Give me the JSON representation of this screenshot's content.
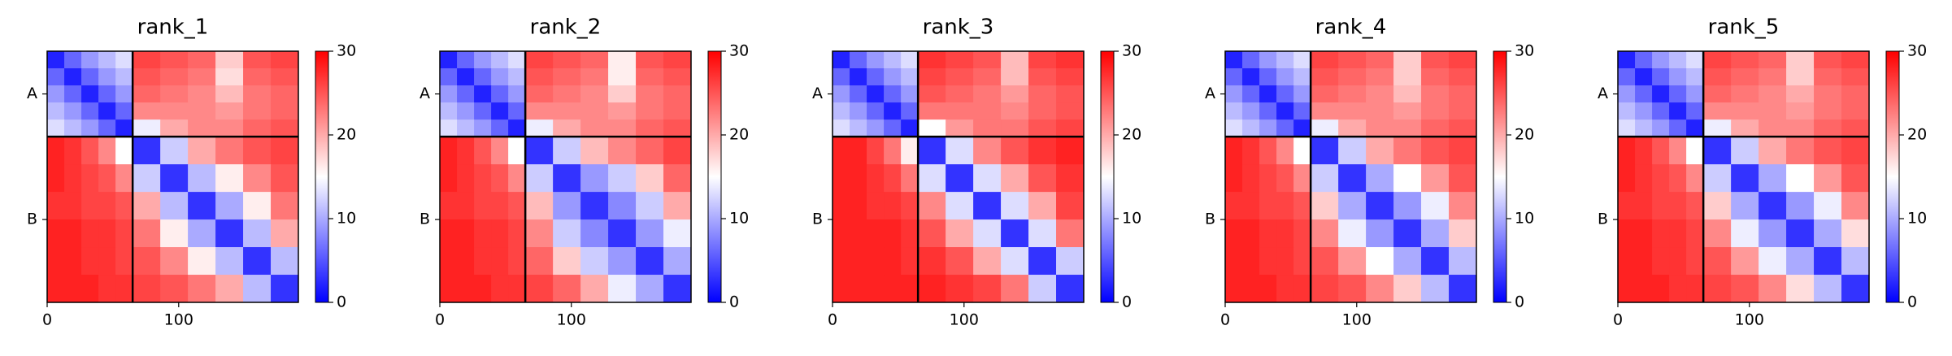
{
  "chart_data": [
    {
      "type": "heatmap",
      "title": "rank_1",
      "colormap": "bwr",
      "bins": [
        0,
        13,
        26,
        39,
        52,
        65,
        86,
        107,
        128,
        149,
        170,
        191
      ],
      "xlim": [
        0,
        191
      ],
      "ylim": [
        191,
        0
      ],
      "xticks": [
        0,
        100
      ],
      "yticks": [
        {
          "value": 32.5,
          "label": "A"
        },
        {
          "value": 128,
          "label": "B"
        }
      ],
      "chain_breaks": [
        65
      ],
      "clim": [
        0,
        30
      ],
      "cticks": [
        0,
        10,
        20,
        30
      ],
      "values": [
        [
          2,
          6,
          9,
          11,
          13,
          26,
          25,
          24,
          18,
          25,
          26
        ],
        [
          6,
          2,
          6,
          9,
          11,
          25,
          24,
          23,
          17,
          24,
          25
        ],
        [
          9,
          6,
          2,
          6,
          9,
          24,
          23,
          22,
          19,
          23,
          24
        ],
        [
          11,
          9,
          6,
          2,
          6,
          22,
          22,
          22,
          21,
          23,
          24
        ],
        [
          13,
          11,
          9,
          6,
          2,
          14,
          20,
          22,
          22,
          24,
          25
        ],
        [
          28,
          27,
          25,
          22,
          15,
          3,
          12,
          20,
          23,
          25,
          26
        ],
        [
          28,
          27,
          26,
          25,
          22,
          12,
          3,
          11,
          16,
          22,
          25
        ],
        [
          27,
          27,
          26,
          26,
          25,
          20,
          11,
          3,
          10,
          16,
          23
        ],
        [
          28,
          28,
          27,
          27,
          26,
          23,
          16,
          10,
          3,
          11,
          20
        ],
        [
          28,
          28,
          27,
          27,
          26,
          25,
          22,
          16,
          11,
          3,
          11
        ],
        [
          28,
          28,
          28,
          27,
          27,
          26,
          25,
          23,
          20,
          11,
          3
        ]
      ]
    },
    {
      "type": "heatmap",
      "title": "rank_2",
      "colormap": "bwr",
      "bins": [
        0,
        13,
        26,
        39,
        52,
        65,
        86,
        107,
        128,
        149,
        170,
        191
      ],
      "xlim": [
        0,
        191
      ],
      "ylim": [
        191,
        0
      ],
      "xticks": [
        0,
        100
      ],
      "yticks": [
        {
          "value": 32.5,
          "label": "A"
        },
        {
          "value": 128,
          "label": "B"
        }
      ],
      "chain_breaks": [
        65
      ],
      "clim": [
        0,
        30
      ],
      "cticks": [
        0,
        10,
        20,
        30
      ],
      "values": [
        [
          2,
          6,
          9,
          11,
          13,
          26,
          25,
          24,
          16,
          25,
          26
        ],
        [
          6,
          2,
          6,
          9,
          11,
          25,
          24,
          23,
          16,
          24,
          25
        ],
        [
          9,
          6,
          2,
          6,
          9,
          24,
          23,
          22,
          18,
          23,
          24
        ],
        [
          11,
          9,
          6,
          2,
          6,
          22,
          22,
          22,
          21,
          23,
          24
        ],
        [
          13,
          11,
          9,
          6,
          2,
          14,
          20,
          22,
          22,
          24,
          25
        ],
        [
          28,
          27,
          25,
          22,
          15,
          3,
          12,
          19,
          22,
          24,
          26
        ],
        [
          28,
          27,
          26,
          25,
          22,
          12,
          3,
          9,
          12,
          18,
          24
        ],
        [
          27,
          27,
          26,
          26,
          25,
          19,
          9,
          3,
          8,
          12,
          20
        ],
        [
          28,
          28,
          27,
          27,
          26,
          22,
          12,
          8,
          3,
          9,
          14
        ],
        [
          28,
          28,
          27,
          27,
          26,
          24,
          18,
          12,
          9,
          3,
          10
        ],
        [
          28,
          28,
          28,
          27,
          27,
          26,
          24,
          20,
          14,
          10,
          3
        ]
      ]
    },
    {
      "type": "heatmap",
      "title": "rank_3",
      "colormap": "bwr",
      "bins": [
        0,
        13,
        26,
        39,
        52,
        65,
        86,
        107,
        128,
        149,
        170,
        191
      ],
      "xlim": [
        0,
        191
      ],
      "ylim": [
        191,
        0
      ],
      "xticks": [
        0,
        100
      ],
      "yticks": [
        {
          "value": 32.5,
          "label": "A"
        },
        {
          "value": 128,
          "label": "B"
        }
      ],
      "chain_breaks": [
        65
      ],
      "clim": [
        0,
        30
      ],
      "cticks": [
        0,
        10,
        20,
        30
      ],
      "values": [
        [
          2,
          6,
          9,
          11,
          13,
          27,
          26,
          25,
          19,
          26,
          27
        ],
        [
          6,
          2,
          6,
          9,
          11,
          26,
          25,
          24,
          19,
          25,
          26
        ],
        [
          9,
          6,
          2,
          6,
          9,
          25,
          24,
          23,
          21,
          24,
          25
        ],
        [
          11,
          9,
          6,
          2,
          6,
          23,
          23,
          23,
          22,
          24,
          25
        ],
        [
          13,
          11,
          9,
          6,
          2,
          15,
          21,
          23,
          23,
          25,
          26
        ],
        [
          28,
          28,
          26,
          23,
          16,
          3,
          13,
          22,
          25,
          27,
          28
        ],
        [
          28,
          28,
          27,
          26,
          23,
          13,
          3,
          13,
          20,
          25,
          27
        ],
        [
          28,
          28,
          27,
          27,
          26,
          22,
          13,
          3,
          13,
          20,
          26
        ],
        [
          28,
          28,
          28,
          28,
          27,
          25,
          20,
          13,
          3,
          13,
          23
        ],
        [
          28,
          28,
          28,
          28,
          27,
          27,
          25,
          20,
          13,
          3,
          12
        ],
        [
          28,
          28,
          28,
          28,
          28,
          28,
          27,
          26,
          23,
          12,
          3
        ]
      ]
    },
    {
      "type": "heatmap",
      "title": "rank_4",
      "colormap": "bwr",
      "bins": [
        0,
        13,
        26,
        39,
        52,
        65,
        86,
        107,
        128,
        149,
        170,
        191
      ],
      "xlim": [
        0,
        191
      ],
      "ylim": [
        191,
        0
      ],
      "xticks": [
        0,
        100
      ],
      "yticks": [
        {
          "value": 32.5,
          "label": "A"
        },
        {
          "value": 128,
          "label": "B"
        }
      ],
      "chain_breaks": [
        65
      ],
      "clim": [
        0,
        30
      ],
      "cticks": [
        0,
        10,
        20,
        30
      ],
      "values": [
        [
          2,
          6,
          9,
          11,
          13,
          26,
          25,
          24,
          18,
          25,
          26
        ],
        [
          6,
          2,
          6,
          9,
          11,
          25,
          24,
          23,
          18,
          24,
          25
        ],
        [
          9,
          6,
          2,
          6,
          9,
          24,
          23,
          22,
          19,
          23,
          24
        ],
        [
          11,
          9,
          6,
          2,
          6,
          22,
          22,
          22,
          21,
          23,
          24
        ],
        [
          13,
          11,
          9,
          6,
          2,
          14,
          20,
          22,
          22,
          24,
          25
        ],
        [
          28,
          27,
          25,
          22,
          15,
          3,
          12,
          20,
          23,
          25,
          26
        ],
        [
          28,
          27,
          26,
          25,
          22,
          12,
          3,
          10,
          15,
          21,
          25
        ],
        [
          27,
          27,
          26,
          26,
          25,
          18,
          10,
          3,
          9,
          14,
          22
        ],
        [
          28,
          28,
          27,
          27,
          26,
          22,
          14,
          9,
          3,
          10,
          18
        ],
        [
          28,
          28,
          27,
          27,
          26,
          25,
          21,
          15,
          10,
          3,
          11
        ],
        [
          28,
          28,
          28,
          27,
          27,
          26,
          25,
          22,
          18,
          11,
          3
        ]
      ]
    },
    {
      "type": "heatmap",
      "title": "rank_5",
      "colormap": "bwr",
      "bins": [
        0,
        13,
        26,
        39,
        52,
        65,
        86,
        107,
        128,
        149,
        170,
        191
      ],
      "xlim": [
        0,
        191
      ],
      "ylim": [
        191,
        0
      ],
      "xticks": [
        0,
        100
      ],
      "yticks": [
        {
          "value": 32.5,
          "label": "A"
        },
        {
          "value": 128,
          "label": "B"
        }
      ],
      "chain_breaks": [
        65
      ],
      "clim": [
        0,
        30
      ],
      "cticks": [
        0,
        10,
        20,
        30
      ],
      "values": [
        [
          2,
          6,
          9,
          11,
          13,
          26,
          25,
          24,
          18,
          25,
          26
        ],
        [
          6,
          2,
          6,
          9,
          11,
          25,
          24,
          23,
          18,
          24,
          25
        ],
        [
          9,
          6,
          2,
          6,
          9,
          24,
          23,
          22,
          20,
          23,
          24
        ],
        [
          11,
          9,
          6,
          2,
          6,
          22,
          22,
          22,
          21,
          23,
          24
        ],
        [
          13,
          11,
          9,
          6,
          2,
          14,
          20,
          22,
          22,
          24,
          25
        ],
        [
          28,
          27,
          25,
          22,
          15,
          3,
          12,
          20,
          23,
          25,
          26
        ],
        [
          28,
          27,
          26,
          25,
          22,
          12,
          3,
          10,
          15,
          21,
          25
        ],
        [
          27,
          27,
          26,
          26,
          25,
          18,
          10,
          3,
          9,
          14,
          22
        ],
        [
          28,
          28,
          27,
          27,
          26,
          22,
          14,
          9,
          3,
          10,
          17
        ],
        [
          28,
          28,
          27,
          27,
          26,
          25,
          21,
          14,
          10,
          3,
          11
        ],
        [
          28,
          28,
          28,
          27,
          27,
          26,
          25,
          22,
          17,
          11,
          3
        ]
      ]
    }
  ]
}
